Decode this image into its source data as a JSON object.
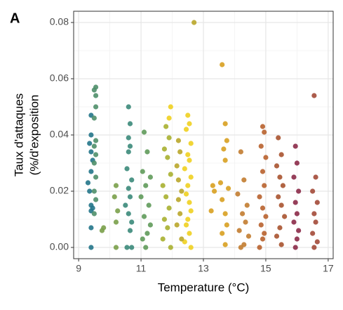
{
  "chart_data": {
    "type": "scatter",
    "panel_label": "A",
    "x_label": "Temperature (°C)",
    "y_label": [
      "Taux d'attaques",
      "(%/d'exposition"
    ],
    "xlim": [
      8.84,
      17.16
    ],
    "ylim": [
      -0.004,
      0.084
    ],
    "xticks": [
      9,
      11,
      13,
      15,
      17
    ],
    "yticks": [
      {
        "value": 0,
        "label": "0.00"
      },
      {
        "value": 0.02,
        "label": "0.02"
      },
      {
        "value": 0.04,
        "label": "0.04"
      },
      {
        "value": 0.06,
        "label": "0.06"
      },
      {
        "value": 0.08,
        "label": "0.08"
      }
    ],
    "x_minor_grid": [
      10,
      12,
      14,
      16
    ],
    "y_minor_grid": [
      0.01,
      0.03,
      0.05,
      0.07
    ],
    "grid": true,
    "series": [
      {
        "color": "#23768a",
        "x": [
          9.4,
          9.4,
          9.35,
          9.4,
          9.45,
          9.4,
          9.3,
          9.35,
          9.4,
          9.45,
          9.4,
          9.4,
          9.4
        ],
        "y": [
          0.047,
          0.04,
          0.037,
          0.034,
          0.031,
          0.027,
          0.023,
          0.02,
          0.015,
          0.014,
          0.013,
          0.007,
          0.0
        ]
      },
      {
        "color": "#4f8f6a",
        "x": [
          9.55,
          9.5,
          9.55,
          9.55,
          9.5,
          9.55,
          9.5,
          9.55,
          9.5,
          9.55,
          9.5,
          9.55,
          9.5
        ],
        "y": [
          0.057,
          0.056,
          0.054,
          0.05,
          0.046,
          0.038,
          0.036,
          0.033,
          0.03,
          0.025,
          0.02,
          0.017,
          0.012
        ]
      },
      {
        "color": "#3b8a7a",
        "x": [
          10.6,
          10.65,
          10.6,
          10.65,
          10.6,
          10.55,
          10.7,
          10.6,
          10.65,
          10.5,
          10.6,
          10.7,
          10.65,
          10.55,
          10.7
        ],
        "y": [
          0.05,
          0.044,
          0.039,
          0.036,
          0.034,
          0.028,
          0.024,
          0.021,
          0.018,
          0.015,
          0.012,
          0.009,
          0.006,
          0.0,
          0.0
        ]
      },
      {
        "color": "#7aa04a",
        "x": [
          10.2,
          10.15,
          10.25,
          10.2,
          10.2,
          9.8,
          9.75
        ],
        "y": [
          0.022,
          0.018,
          0.013,
          0.009,
          0.0,
          0.007,
          0.006
        ]
      },
      {
        "color": "#5f9a5a",
        "x": [
          11.1,
          11.2,
          11.05,
          11.3,
          11.15,
          11.0,
          11.25,
          11.1,
          11.3,
          11.2,
          11.05,
          11.15
        ],
        "y": [
          0.041,
          0.034,
          0.027,
          0.025,
          0.022,
          0.018,
          0.015,
          0.011,
          0.008,
          0.005,
          0.003,
          0.0
        ]
      },
      {
        "color": "#a8b030",
        "x": [
          11.8,
          11.9,
          11.75,
          11.85,
          11.95,
          11.7,
          11.8,
          11.9,
          11.75,
          11.85,
          11.7,
          11.95
        ],
        "y": [
          0.043,
          0.039,
          0.035,
          0.032,
          0.026,
          0.022,
          0.018,
          0.014,
          0.01,
          0.007,
          0.003,
          0.0
        ]
      },
      {
        "color": "#f0d020",
        "x": [
          11.95,
          11.9,
          12.5,
          12.55,
          12.45,
          12.6,
          12.5,
          12.55,
          12.4,
          12.6,
          12.5,
          12.45,
          12.55,
          12.6,
          12.5,
          12.45,
          12.55,
          12.4,
          12.6
        ],
        "y": [
          0.05,
          0.046,
          0.047,
          0.044,
          0.042,
          0.037,
          0.033,
          0.031,
          0.028,
          0.025,
          0.022,
          0.019,
          0.016,
          0.013,
          0.01,
          0.008,
          0.005,
          0.002,
          0.0
        ]
      },
      {
        "color": "#b9a62a",
        "x": [
          12.7,
          12.2,
          12.25,
          12.15,
          12.2,
          12.3,
          12.2,
          12.25,
          12.15,
          12.3
        ],
        "y": [
          0.08,
          0.038,
          0.034,
          0.029,
          0.024,
          0.02,
          0.017,
          0.012,
          0.008,
          0.003
        ]
      },
      {
        "color": "#d8a020",
        "x": [
          13.6,
          13.7,
          13.75,
          13.65,
          13.7,
          13.55,
          13.8,
          13.6,
          13.7,
          13.75,
          13.6,
          13.7,
          13.3,
          13.35,
          13.25
        ],
        "y": [
          0.065,
          0.044,
          0.038,
          0.035,
          0.031,
          0.023,
          0.021,
          0.017,
          0.012,
          0.008,
          0.005,
          0.001,
          0.022,
          0.02,
          0.013
        ]
      },
      {
        "color": "#c27c30",
        "x": [
          14.2,
          14.3,
          14.1,
          14.4,
          14.25,
          14.35,
          14.15,
          14.45,
          14.3,
          14.2
        ],
        "y": [
          0.034,
          0.024,
          0.019,
          0.015,
          0.012,
          0.009,
          0.006,
          0.004,
          0.001,
          0.0
        ]
      },
      {
        "color": "#b8622e",
        "x": [
          14.9,
          14.95,
          14.85,
          15.0,
          14.9,
          14.95,
          14.8,
          14.9,
          15.0,
          14.85,
          14.95,
          14.9,
          14.8
        ],
        "y": [
          0.043,
          0.041,
          0.036,
          0.032,
          0.027,
          0.022,
          0.018,
          0.014,
          0.011,
          0.008,
          0.005,
          0.003,
          0.0
        ]
      },
      {
        "color": "#a9532f",
        "x": [
          15.4,
          15.5,
          15.35,
          15.45,
          15.55,
          15.4,
          15.5,
          15.6,
          15.45,
          15.35,
          15.5
        ],
        "y": [
          0.039,
          0.033,
          0.029,
          0.025,
          0.022,
          0.018,
          0.015,
          0.011,
          0.007,
          0.004,
          0.001
        ]
      },
      {
        "color": "#8b2a48",
        "x": [
          15.95,
          16.0,
          15.9,
          16.05,
          15.95,
          16.0,
          15.9,
          16.05,
          16.0,
          15.95
        ],
        "y": [
          0.036,
          0.03,
          0.025,
          0.02,
          0.016,
          0.012,
          0.009,
          0.006,
          0.003,
          0.0
        ]
      },
      {
        "color": "#a34a38",
        "x": [
          16.55,
          16.6,
          16.5,
          16.65,
          16.55,
          16.6,
          16.5,
          16.65,
          16.55
        ],
        "y": [
          0.054,
          0.025,
          0.02,
          0.016,
          0.012,
          0.009,
          0.005,
          0.002,
          0.0
        ]
      }
    ]
  }
}
